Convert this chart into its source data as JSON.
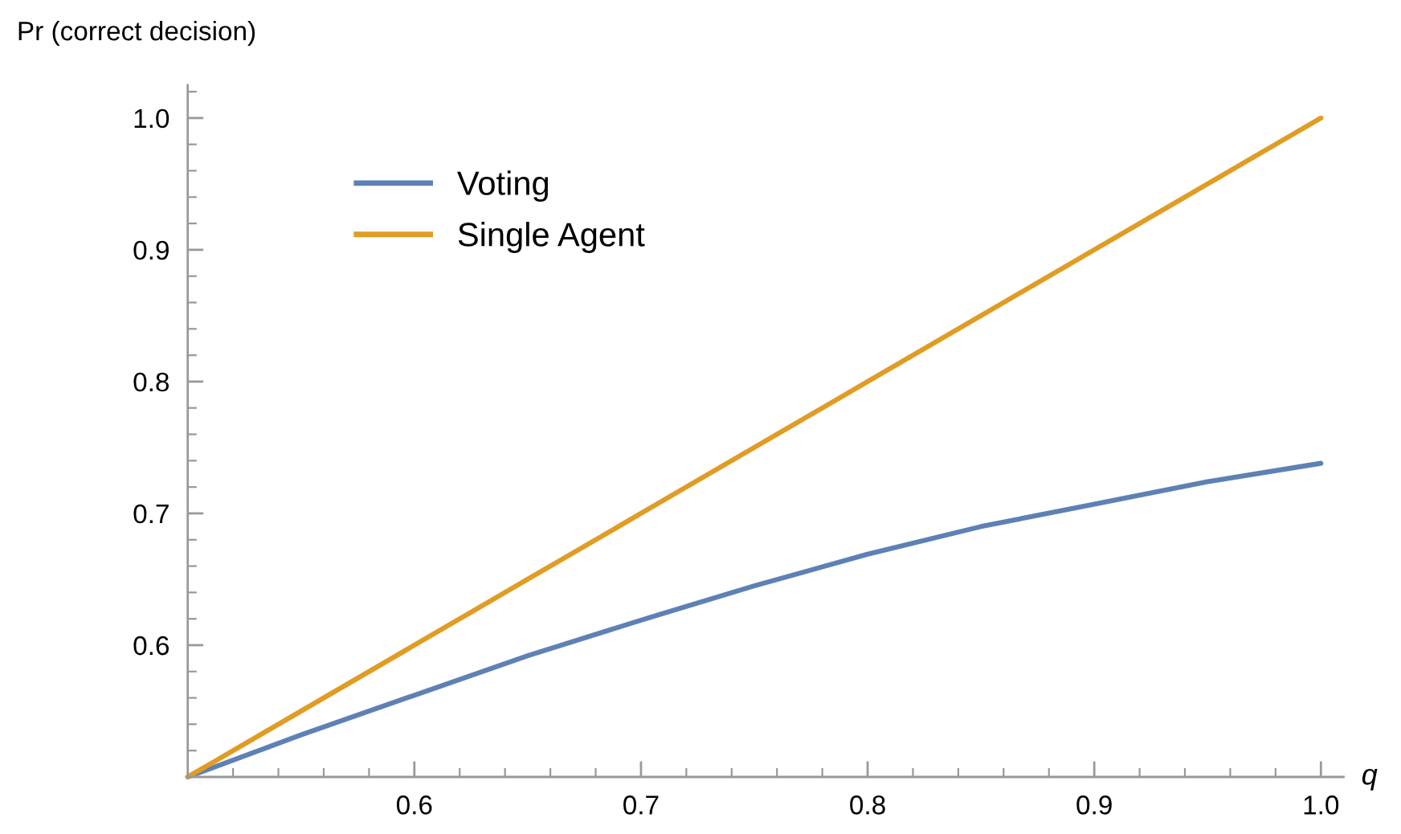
{
  "chart_data": {
    "type": "line",
    "xlabel": "q",
    "ylabel": "Pr (correct decision)",
    "x": [
      0.5,
      0.55,
      0.6,
      0.65,
      0.7,
      0.75,
      0.8,
      0.85,
      0.9,
      0.95,
      1.0
    ],
    "series": [
      {
        "name": "Voting",
        "color": "#5e81b5",
        "values": [
          0.5,
          0.532,
          0.562,
          0.592,
          0.619,
          0.645,
          0.669,
          0.69,
          0.707,
          0.724,
          0.738
        ]
      },
      {
        "name": "Single Agent",
        "color": "#e19c24",
        "values": [
          0.5,
          0.55,
          0.6,
          0.65,
          0.7,
          0.75,
          0.8,
          0.85,
          0.9,
          0.95,
          1.0
        ]
      }
    ],
    "xlim": [
      0.5,
      1.01
    ],
    "ylim": [
      0.5,
      1.025
    ],
    "xticks": [
      {
        "value": 0.52,
        "label": null
      },
      {
        "value": 0.54,
        "label": null
      },
      {
        "value": 0.56,
        "label": null
      },
      {
        "value": 0.58,
        "label": null
      },
      0.6,
      {
        "value": 0.62,
        "label": null
      },
      {
        "value": 0.64,
        "label": null
      },
      {
        "value": 0.66,
        "label": null
      },
      {
        "value": 0.68,
        "label": null
      },
      0.7,
      {
        "value": 0.72,
        "label": null
      },
      {
        "value": 0.74,
        "label": null
      },
      {
        "value": 0.76,
        "label": null
      },
      {
        "value": 0.78,
        "label": null
      },
      0.8,
      {
        "value": 0.82,
        "label": null
      },
      {
        "value": 0.84,
        "label": null
      },
      {
        "value": 0.86,
        "label": null
      },
      {
        "value": 0.88,
        "label": null
      },
      0.9,
      {
        "value": 0.92,
        "label": null
      },
      {
        "value": 0.94,
        "label": null
      },
      {
        "value": 0.96,
        "label": null
      },
      {
        "value": 0.98,
        "label": null
      },
      {
        "value": 1.0,
        "label": "1.0"
      }
    ],
    "yticks": [
      {
        "value": 0.52,
        "label": null
      },
      {
        "value": 0.54,
        "label": null
      },
      {
        "value": 0.56,
        "label": null
      },
      {
        "value": 0.58,
        "label": null
      },
      0.6,
      {
        "value": 0.62,
        "label": null
      },
      {
        "value": 0.64,
        "label": null
      },
      {
        "value": 0.66,
        "label": null
      },
      {
        "value": 0.68,
        "label": null
      },
      0.7,
      {
        "value": 0.72,
        "label": null
      },
      {
        "value": 0.74,
        "label": null
      },
      {
        "value": 0.76,
        "label": null
      },
      {
        "value": 0.78,
        "label": null
      },
      0.8,
      {
        "value": 0.82,
        "label": null
      },
      {
        "value": 0.84,
        "label": null
      },
      {
        "value": 0.86,
        "label": null
      },
      {
        "value": 0.88,
        "label": null
      },
      0.9,
      {
        "value": 0.92,
        "label": null
      },
      {
        "value": 0.94,
        "label": null
      },
      {
        "value": 0.96,
        "label": null
      },
      {
        "value": 0.98,
        "label": null
      },
      {
        "value": 1.0,
        "label": "1.0"
      },
      {
        "value": 1.02,
        "label": null
      }
    ],
    "grid": false,
    "legend": "top left",
    "marker": "none",
    "line_style": "solid"
  }
}
